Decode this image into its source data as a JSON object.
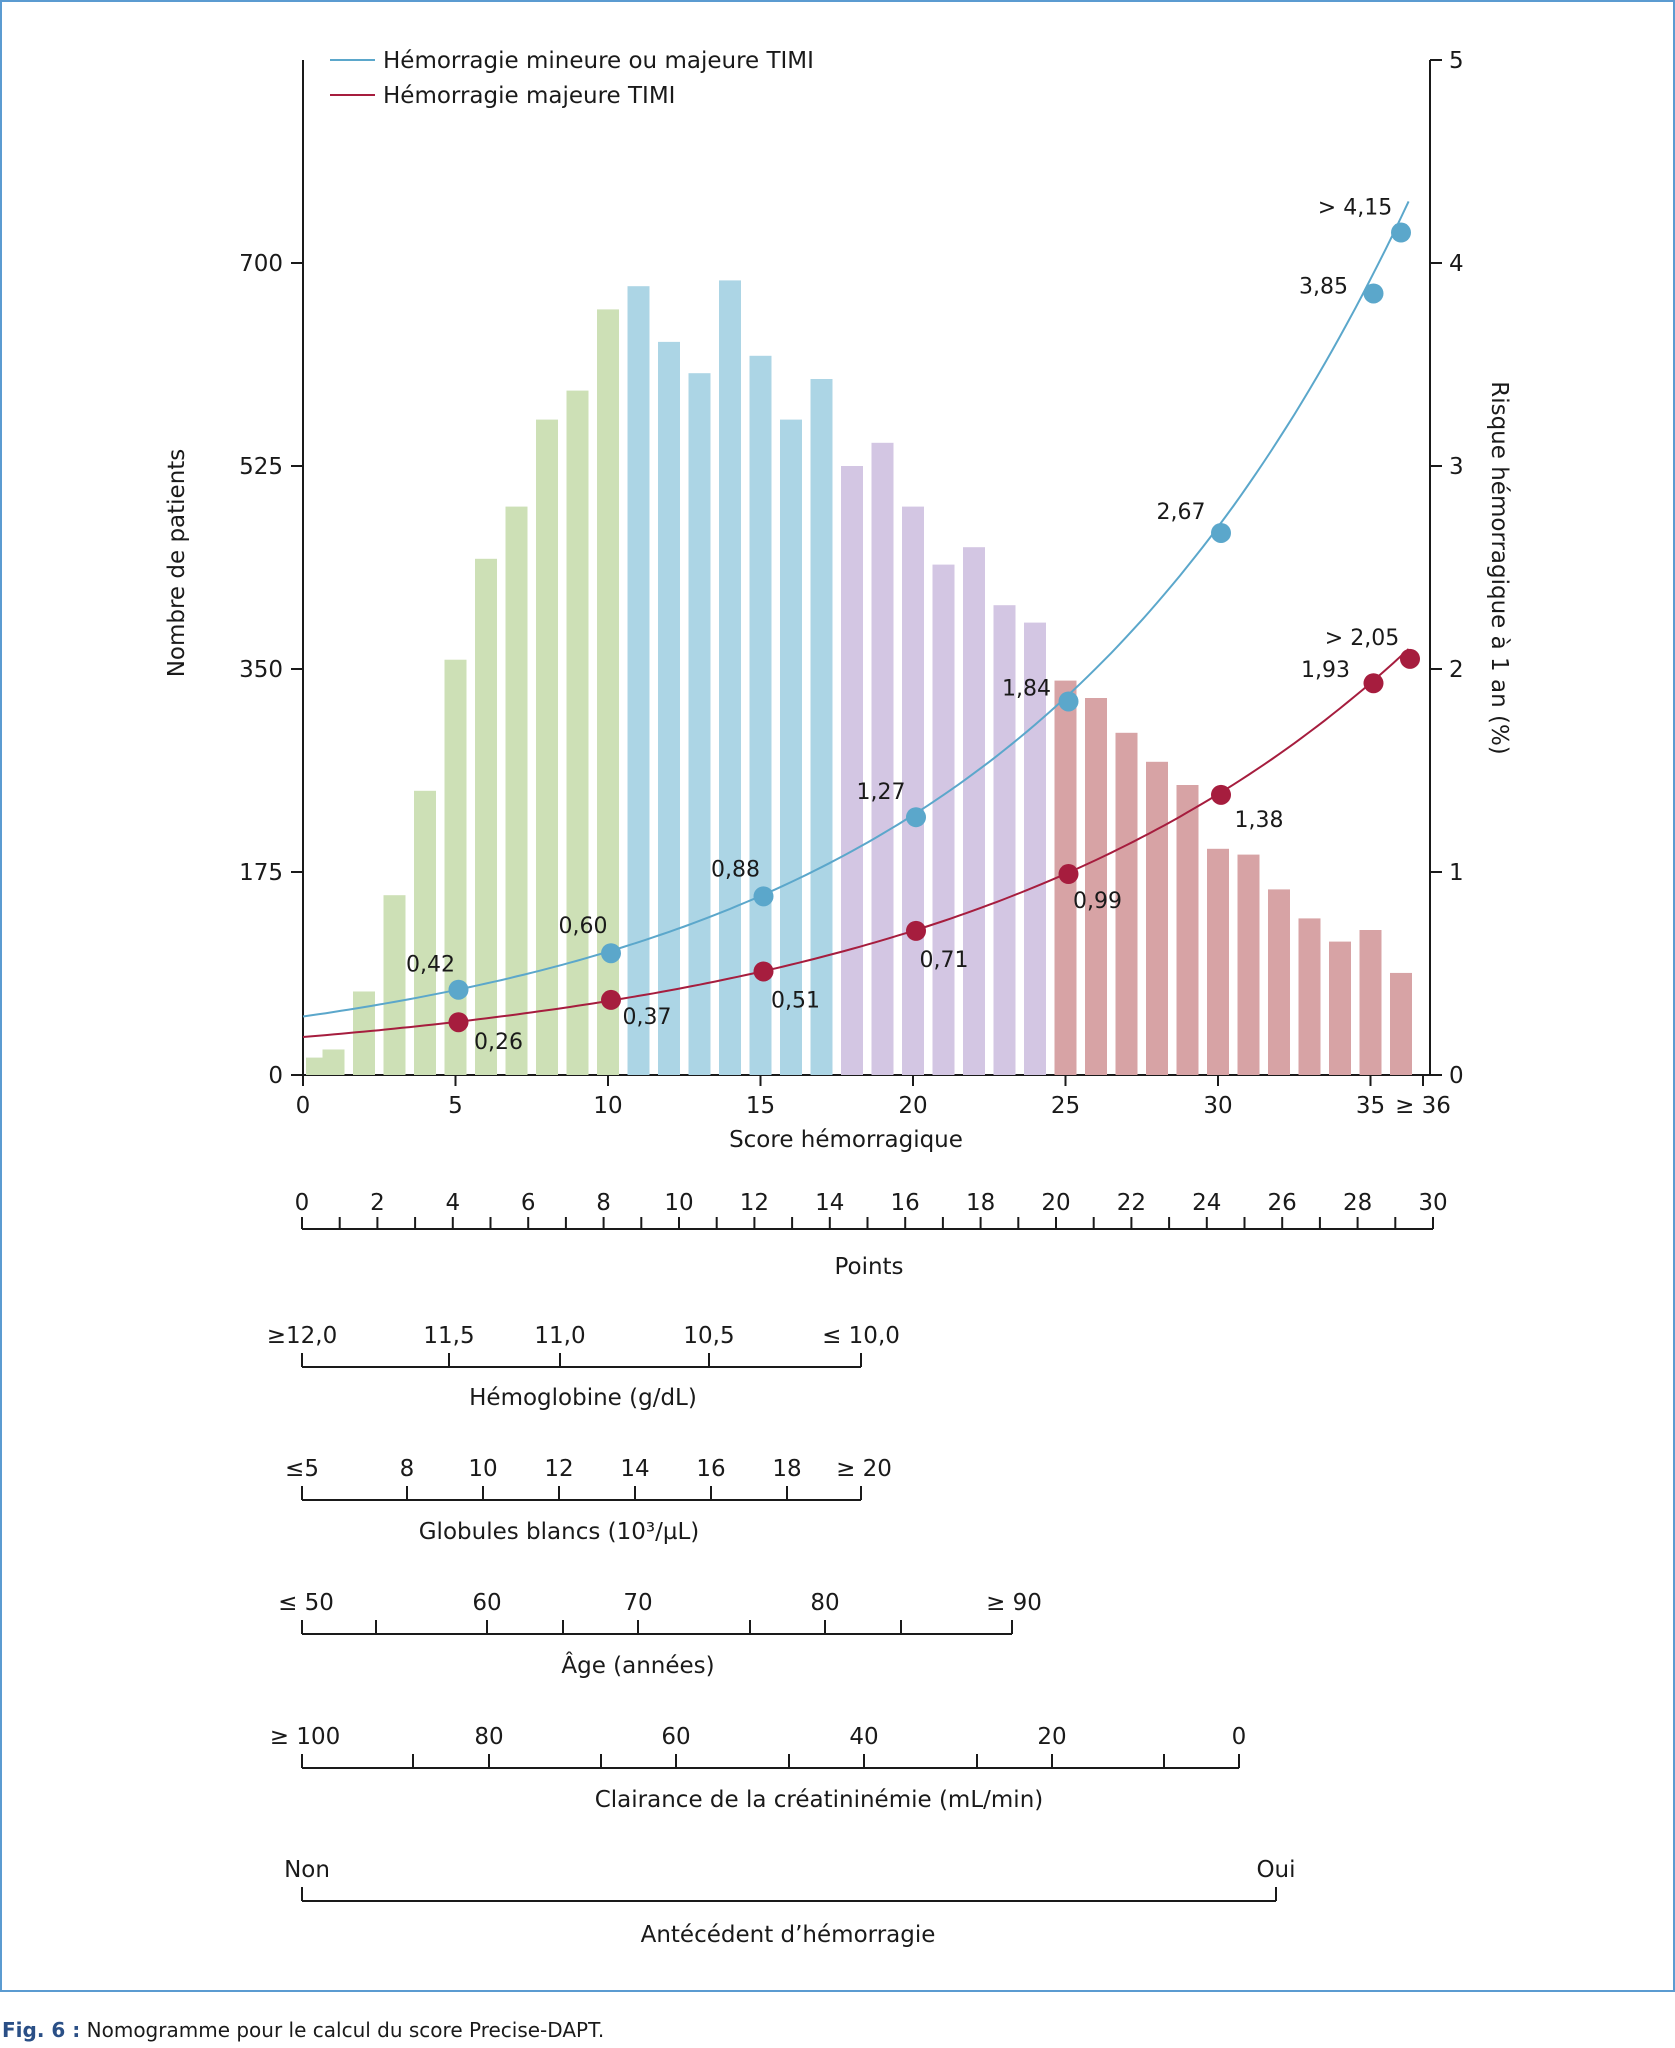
{
  "caption": {
    "prefix": "Fig. 6 :",
    "text": "Nomogramme pour le calcul du score Precise-DAPT."
  },
  "chart_data": {
    "type": "bar",
    "xlabel": "Score hémorragique",
    "ylabel_left": "Nombre de patients",
    "ylabel_right": "Risque hémorragique à 1 an (%)",
    "x_ticks": [
      "0",
      "5",
      "10",
      "15",
      "20",
      "25",
      "30",
      "35",
      "≥ 36"
    ],
    "ylim_left": [
      0,
      875
    ],
    "y_ticks_left": [
      "0",
      "175",
      "350",
      "525",
      "700"
    ],
    "ylim_right": [
      0,
      5
    ],
    "y_ticks_right": [
      "0",
      "1",
      "2",
      "3",
      "4",
      "5"
    ],
    "grid": false,
    "legend_position": "top-left",
    "bars": {
      "scores": [
        0,
        1,
        2,
        3,
        4,
        5,
        6,
        7,
        8,
        9,
        10,
        11,
        12,
        13,
        14,
        15,
        16,
        17,
        18,
        19,
        20,
        21,
        22,
        23,
        24,
        25,
        26,
        27,
        28,
        29,
        30,
        31,
        32,
        33,
        34,
        35,
        36
      ],
      "values": [
        15,
        22,
        72,
        155,
        245,
        358,
        445,
        490,
        565,
        590,
        660,
        680,
        632,
        605,
        685,
        620,
        565,
        600,
        525,
        545,
        490,
        440,
        455,
        405,
        390,
        340,
        325,
        295,
        270,
        250,
        195,
        190,
        160,
        135,
        115,
        125,
        88
      ],
      "group_colors": {
        "green": "#cde0b6",
        "blue": "#acd5e5",
        "purple": "#d3c6e3",
        "red": "#d7a3a5"
      },
      "groups": [
        "green",
        "green",
        "green",
        "green",
        "green",
        "green",
        "green",
        "green",
        "green",
        "green",
        "green",
        "blue",
        "blue",
        "blue",
        "blue",
        "blue",
        "blue",
        "blue",
        "purple",
        "purple",
        "purple",
        "purple",
        "purple",
        "purple",
        "purple",
        "red",
        "red",
        "red",
        "red",
        "red",
        "red",
        "red",
        "red",
        "red",
        "red",
        "red",
        "red"
      ]
    },
    "series": [
      {
        "name": "Hémorragie mineure ou majeure TIMI",
        "color": "#5ba7cb",
        "x": [
          5,
          10,
          15,
          20,
          25,
          30,
          35,
          36
        ],
        "y": [
          0.42,
          0.6,
          0.88,
          1.27,
          1.84,
          2.67,
          3.85,
          4.15
        ],
        "labels": [
          "0,42",
          "0,60",
          "0,88",
          "1,27",
          "1,84",
          "2,67",
          "3,85",
          "> 4,15"
        ]
      },
      {
        "name": "Hémorragie majeure TIMI",
        "color": "#a61d3e",
        "x": [
          5,
          10,
          15,
          20,
          25,
          30,
          35,
          36
        ],
        "y": [
          0.26,
          0.37,
          0.51,
          0.71,
          0.99,
          1.38,
          1.93,
          2.05
        ],
        "labels": [
          "0,26",
          "0,37",
          "0,51",
          "0,71",
          "0,99",
          "1,38",
          "1,93",
          "> 2,05"
        ]
      }
    ]
  },
  "nomogram": {
    "points": {
      "title": "Points",
      "labels": [
        "0",
        "2",
        "4",
        "6",
        "8",
        "10",
        "12",
        "14",
        "16",
        "18",
        "20",
        "22",
        "24",
        "26",
        "28",
        "30"
      ]
    },
    "scales": [
      {
        "title": "Hémoglobine (g/dL)",
        "labels": [
          "≥12,0",
          "11,5",
          "11,0",
          "10,5",
          "≤ 10,0"
        ]
      },
      {
        "title": "Globules blancs (10³/µL)",
        "labels": [
          "≤5",
          "8",
          "10",
          "12",
          "14",
          "16",
          "18",
          "≥ 20"
        ]
      },
      {
        "title": "Âge (années)",
        "labels": [
          "≤ 50",
          "60",
          "70",
          "80",
          "≥ 90"
        ]
      },
      {
        "title": "Clairance de la créatininémie (mL/min)",
        "labels": [
          "≥ 100",
          "80",
          "60",
          "40",
          "20",
          "0"
        ]
      },
      {
        "title": "Antécédent d’hémorragie",
        "labels": [
          "Non",
          "Oui"
        ]
      }
    ]
  }
}
